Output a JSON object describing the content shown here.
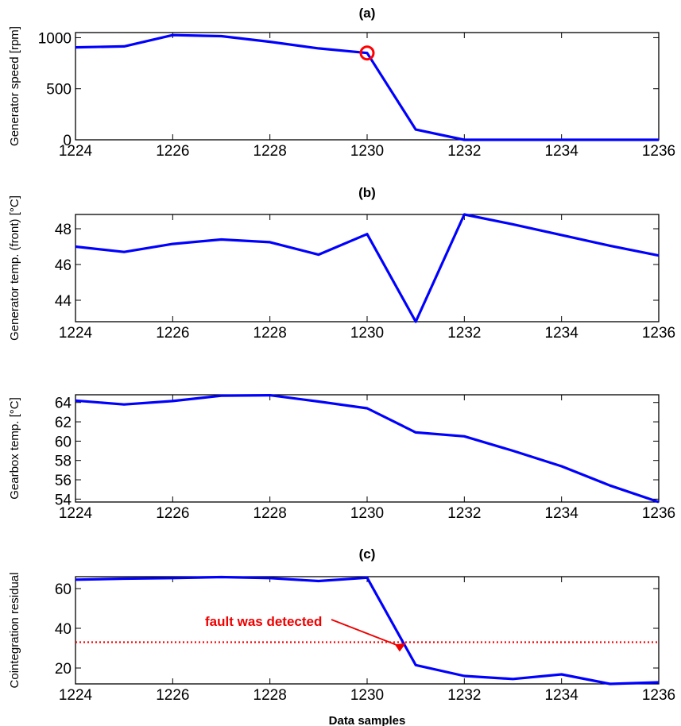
{
  "chart_data": [
    {
      "type": "line",
      "title": "(a)",
      "xlabel": "",
      "ylabel": "Generator speed [rpm]",
      "xlim": [
        1224,
        1236
      ],
      "ylim": [
        0,
        1050
      ],
      "xticks": [
        1224,
        1226,
        1228,
        1230,
        1232,
        1234,
        1236
      ],
      "yticks": [
        0,
        500,
        1000
      ],
      "grid": false,
      "x": [
        1224,
        1225,
        1226,
        1227,
        1228,
        1229,
        1230,
        1231,
        1232,
        1233,
        1234,
        1235,
        1236
      ],
      "series": [
        {
          "color": "#0000ff",
          "values": [
            905,
            915,
            1025,
            1015,
            960,
            895,
            850,
            100,
            0,
            0,
            0,
            0,
            0
          ]
        }
      ],
      "markers": [
        {
          "shape": "circle",
          "color": "#ff0000",
          "x": 1230,
          "y": 850
        }
      ]
    },
    {
      "type": "line",
      "title": "(b)",
      "xlabel": "",
      "ylabel": "Generator temp. (front) [°C]",
      "xlim": [
        1224,
        1236
      ],
      "ylim": [
        42.8,
        48.8
      ],
      "xticks": [
        1224,
        1226,
        1228,
        1230,
        1232,
        1234,
        1236
      ],
      "yticks": [
        44,
        46,
        48
      ],
      "grid": false,
      "x": [
        1224,
        1225,
        1226,
        1227,
        1228,
        1229,
        1230,
        1231,
        1232,
        1233,
        1234,
        1235,
        1236
      ],
      "series": [
        {
          "color": "#0000ff",
          "values": [
            47.0,
            46.7,
            47.15,
            47.4,
            47.25,
            46.55,
            47.7,
            42.8,
            48.8,
            48.25,
            47.65,
            47.05,
            46.5
          ]
        }
      ]
    },
    {
      "type": "line",
      "title": "",
      "xlabel": "",
      "ylabel": "Gearbox temp. [°C]",
      "xlim": [
        1224,
        1236
      ],
      "ylim": [
        53.7,
        64.8
      ],
      "xticks": [
        1224,
        1226,
        1228,
        1230,
        1232,
        1234,
        1236
      ],
      "yticks": [
        54,
        56,
        58,
        60,
        62,
        64
      ],
      "grid": false,
      "x": [
        1224,
        1225,
        1226,
        1227,
        1228,
        1229,
        1230,
        1231,
        1232,
        1233,
        1234,
        1235,
        1236
      ],
      "series": [
        {
          "color": "#0000ff",
          "values": [
            64.2,
            63.8,
            64.15,
            64.7,
            64.75,
            64.1,
            63.4,
            60.9,
            60.5,
            59.0,
            57.4,
            55.4,
            53.7
          ]
        }
      ]
    },
    {
      "type": "line",
      "title": "(c)",
      "xlabel": "Data samples",
      "ylabel": "Cointegration residual",
      "xlim": [
        1224,
        1236
      ],
      "ylim": [
        12,
        66
      ],
      "xticks": [
        1224,
        1226,
        1228,
        1230,
        1232,
        1234,
        1236
      ],
      "yticks": [
        20,
        40,
        60
      ],
      "grid": false,
      "x": [
        1224,
        1225,
        1226,
        1227,
        1228,
        1229,
        1230,
        1231,
        1232,
        1233,
        1234,
        1235,
        1236
      ],
      "series": [
        {
          "color": "#0000ff",
          "values": [
            64.5,
            65.0,
            65.3,
            65.8,
            65.3,
            63.8,
            65.5,
            21.5,
            16.0,
            14.5,
            16.8,
            12.0,
            12.8
          ]
        }
      ],
      "threshold": {
        "y": 33,
        "color": "#ff0000",
        "style": "dotted"
      },
      "annotation": {
        "text": "fault was detected",
        "color": "#ee0000",
        "x": 1230.8,
        "y": 33
      }
    }
  ]
}
